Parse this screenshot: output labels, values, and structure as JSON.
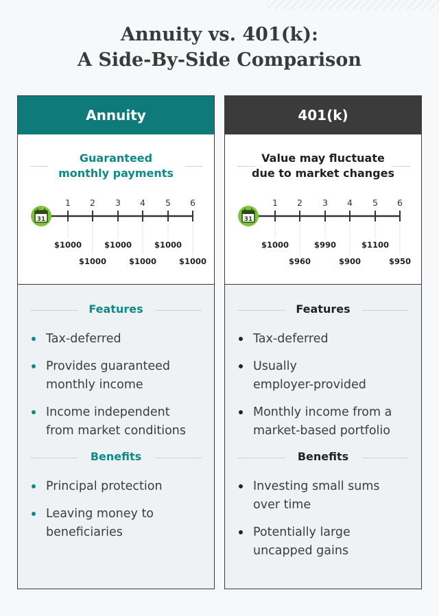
{
  "title": {
    "line1": "Annuity vs. 401(k):",
    "line2": "A Side-By-Side Comparison"
  },
  "columns": [
    {
      "header": "Annuity",
      "timeline_title_line1": "Guaranteed",
      "timeline_title_line2": "monthly payments",
      "calendar_icon_text": "31",
      "ticks": [
        "1",
        "2",
        "3",
        "4",
        "5",
        "6"
      ],
      "payments": [
        "$1000",
        "$1000",
        "$1000",
        "$1000",
        "$1000",
        "$1000"
      ],
      "features_heading": "Features",
      "features": [
        [
          "Tax-deferred"
        ],
        [
          "Provides guaranteed",
          "monthly income"
        ],
        [
          "Income independent",
          "from market conditions"
        ]
      ],
      "benefits_heading": "Benefits",
      "benefits": [
        [
          "Principal protection"
        ],
        [
          "Leaving money to",
          "beneficiaries"
        ]
      ]
    },
    {
      "header": "401(k)",
      "timeline_title_line1": "Value may fluctuate",
      "timeline_title_line2": "due to market changes",
      "calendar_icon_text": "31",
      "ticks": [
        "1",
        "2",
        "3",
        "4",
        "5",
        "6"
      ],
      "payments": [
        "$1000",
        "$960",
        "$990",
        "$900",
        "$1100",
        "$950"
      ],
      "features_heading": "Features",
      "features": [
        [
          "Tax-deferred"
        ],
        [
          "Usually",
          "employer-provided"
        ],
        [
          "Monthly income from a",
          "market-based portfolio"
        ]
      ],
      "benefits_heading": "Benefits",
      "benefits": [
        [
          "Investing small sums",
          "over time"
        ],
        [
          "Potentially large",
          "uncapped gains"
        ]
      ]
    }
  ],
  "colors": {
    "annuity_accent": "#0e8a87",
    "annuity_header": "#0e7b7a",
    "k401_header": "#3b3b3b",
    "calendar_green": "#7dc33a"
  },
  "icons": [
    "calendar-icon"
  ]
}
